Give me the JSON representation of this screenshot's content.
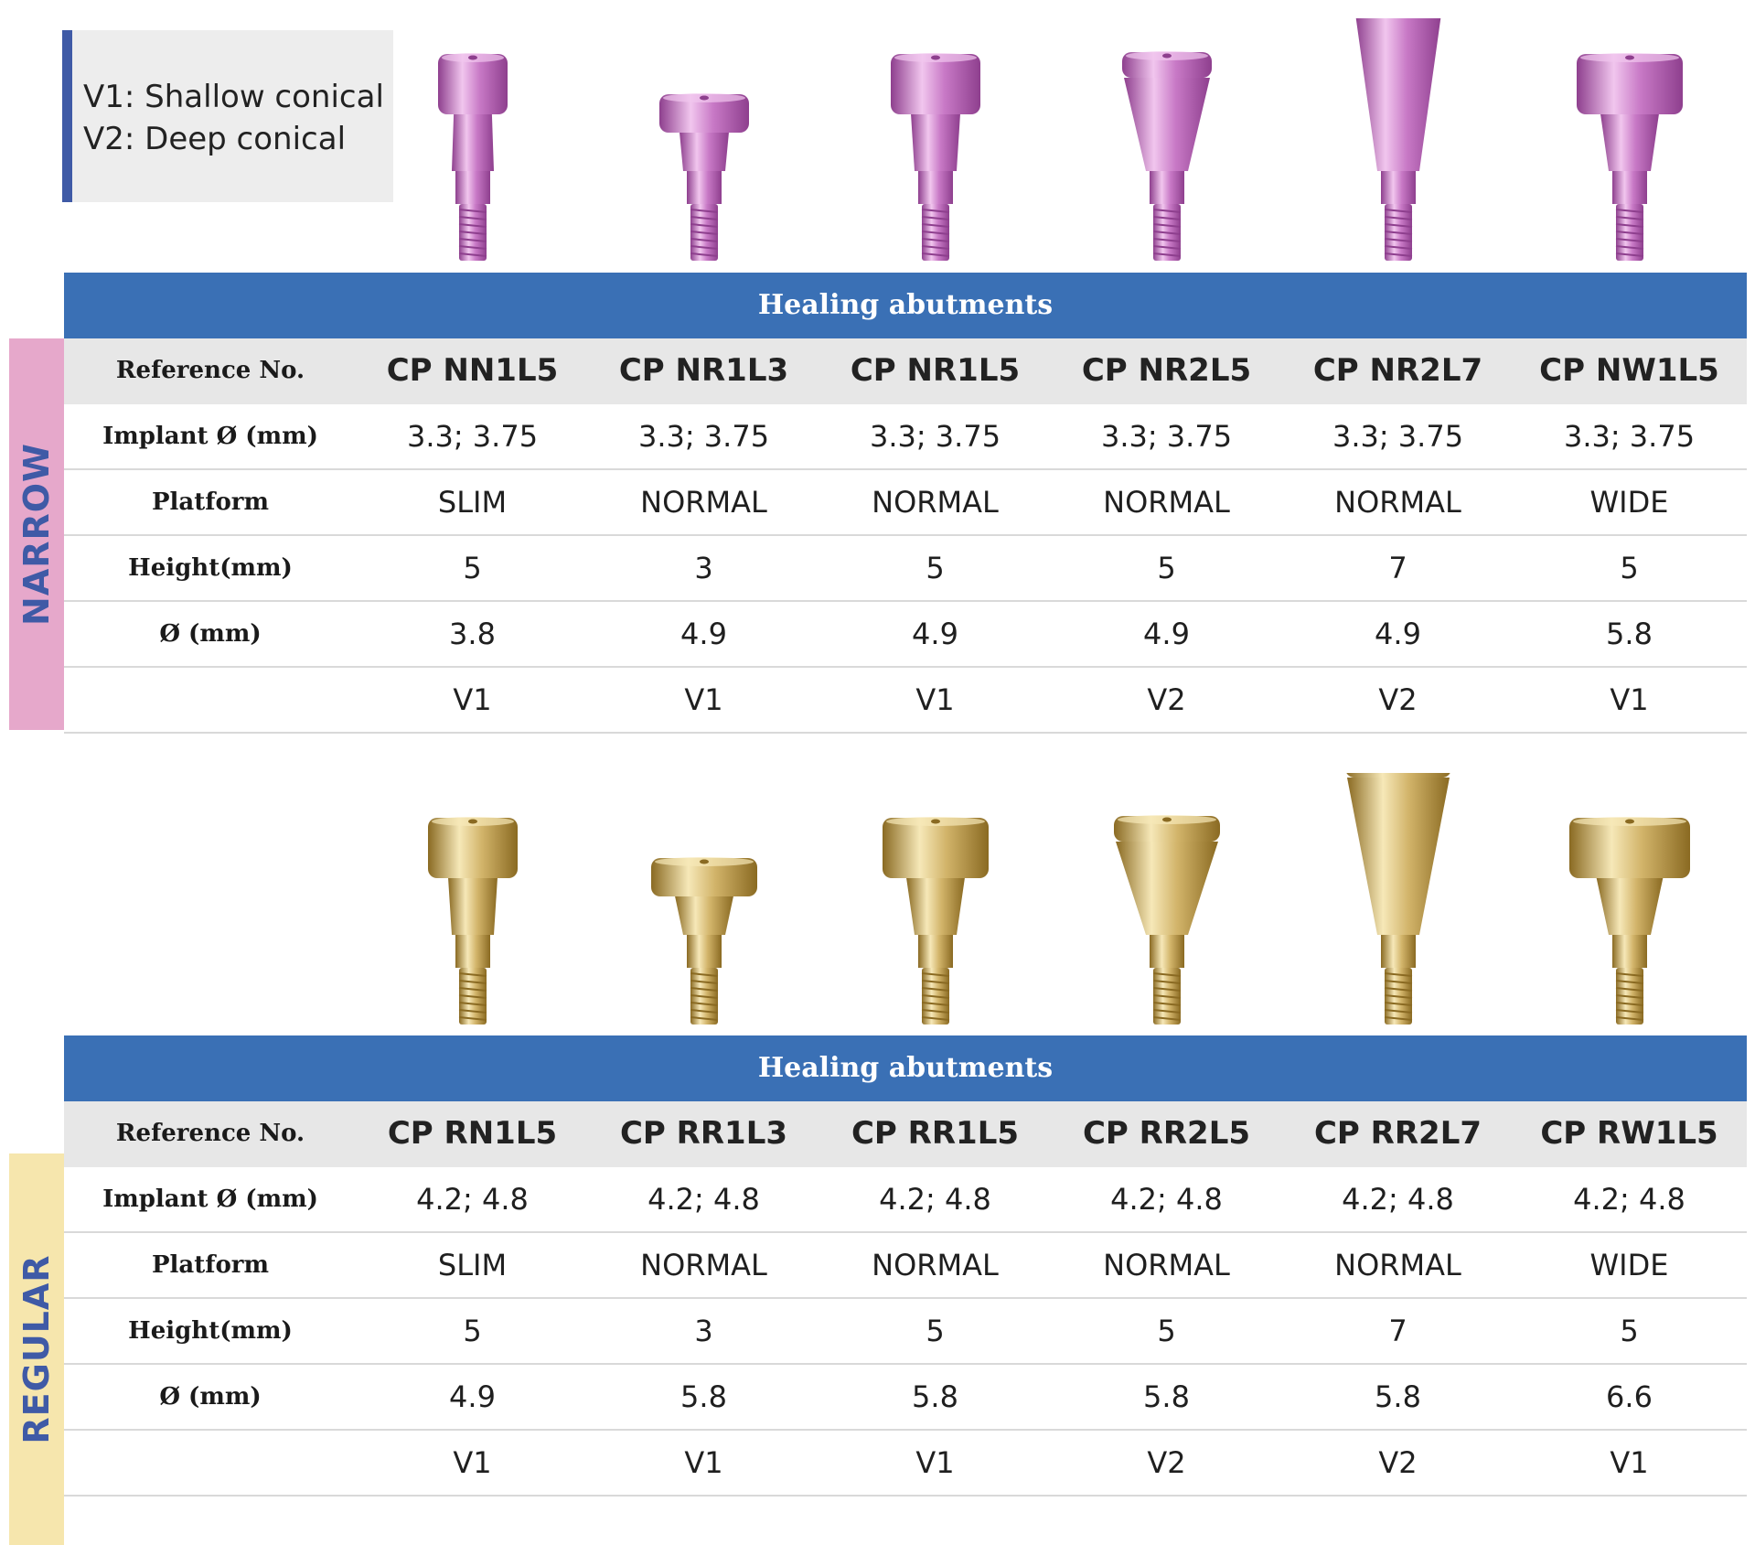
{
  "legend": {
    "v1": "V1: Shallow conical",
    "v2": "V2: Deep conical"
  },
  "colors": {
    "header_blue": "#3a70b5",
    "narrow_sidebar": "#e6a8cb",
    "regular_sidebar": "#f6e6ad",
    "sidebar_text": "#3f5aa6",
    "narrow_product": "#c879c6",
    "regular_product": "#d2b46a"
  },
  "narrow": {
    "sidebar_label": "NARROW",
    "header": "Healing abutments",
    "labels": {
      "reference": "Reference No.",
      "implant": "Implant Ø (mm)",
      "platform": "Platform",
      "height": "Height(mm)",
      "diameter": "Ø (mm)",
      "type": ""
    },
    "products": [
      {
        "ref": "CP NN1L5",
        "implant": "3.3; 3.75",
        "platform": "SLIM",
        "height": "5",
        "diameter": "3.8",
        "type": "V1"
      },
      {
        "ref": "CP NR1L3",
        "implant": "3.3; 3.75",
        "platform": "NORMAL",
        "height": "3",
        "diameter": "4.9",
        "type": "V1"
      },
      {
        "ref": "CP NR1L5",
        "implant": "3.3; 3.75",
        "platform": "NORMAL",
        "height": "5",
        "diameter": "4.9",
        "type": "V1"
      },
      {
        "ref": "CP NR2L5",
        "implant": "3.3; 3.75",
        "platform": "NORMAL",
        "height": "5",
        "diameter": "4.9",
        "type": "V2"
      },
      {
        "ref": "CP NR2L7",
        "implant": "3.3; 3.75",
        "platform": "NORMAL",
        "height": "7",
        "diameter": "4.9",
        "type": "V2"
      },
      {
        "ref": "CP NW1L5",
        "implant": "3.3; 3.75",
        "platform": "WIDE",
        "height": "5",
        "diameter": "5.8",
        "type": "V1"
      }
    ]
  },
  "regular": {
    "sidebar_label": "REGULAR",
    "header": "Healing abutments",
    "labels": {
      "reference": "Reference No.",
      "implant": "Implant Ø (mm)",
      "platform": "Platform",
      "height": "Height(mm)",
      "diameter": "Ø (mm)",
      "type": ""
    },
    "products": [
      {
        "ref": "CP RN1L5",
        "implant": "4.2; 4.8",
        "platform": "SLIM",
        "height": "5",
        "diameter": "4.9",
        "type": "V1"
      },
      {
        "ref": "CP RR1L3",
        "implant": "4.2; 4.8",
        "platform": "NORMAL",
        "height": "3",
        "diameter": "5.8",
        "type": "V1"
      },
      {
        "ref": "CP RR1L5",
        "implant": "4.2; 4.8",
        "platform": "NORMAL",
        "height": "5",
        "diameter": "5.8",
        "type": "V1"
      },
      {
        "ref": "CP RR2L5",
        "implant": "4.2; 4.8",
        "platform": "NORMAL",
        "height": "5",
        "diameter": "5.8",
        "type": "V2"
      },
      {
        "ref": "CP RR2L7",
        "implant": "4.2; 4.8",
        "platform": "NORMAL",
        "height": "7",
        "diameter": "5.8",
        "type": "V2"
      },
      {
        "ref": "CP RW1L5",
        "implant": "4.2; 4.8",
        "platform": "WIDE",
        "height": "5",
        "diameter": "6.6",
        "type": "V1"
      }
    ]
  }
}
